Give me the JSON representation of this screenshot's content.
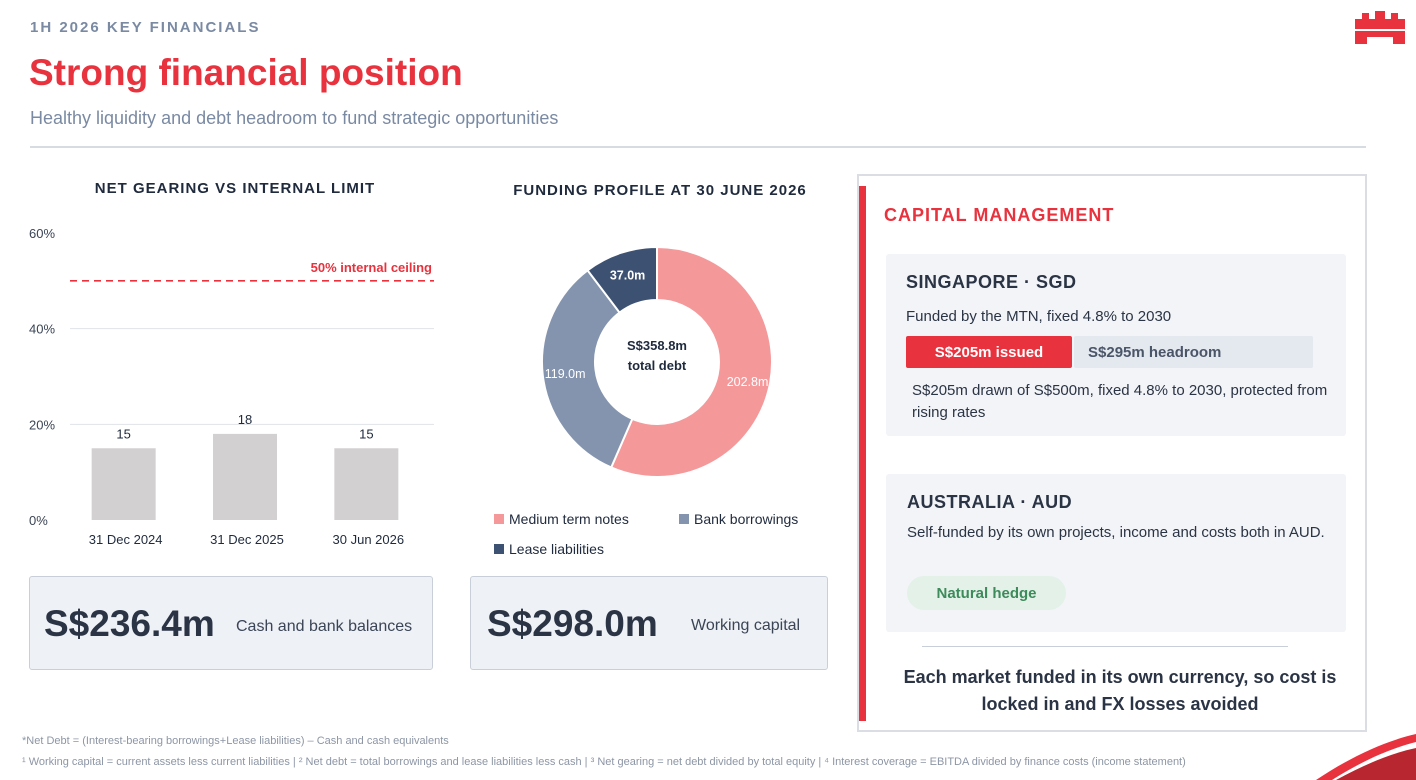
{
  "header": {
    "eyebrow": "1H 2026 KEY FINANCIALS",
    "title": "Strong financial position",
    "subtitle": "Healthy liquidity and debt headroom to fund strategic opportunities"
  },
  "colors": {
    "accent": "#e8323d",
    "navy": "#2b3445",
    "bar": "#d3d0d1",
    "mtn": "#f4989a",
    "bank": "#8494ae",
    "lease": "#3d5273"
  },
  "gearing": {
    "heading": "NET GEARING VS INTERNAL LIMIT",
    "ceiling_label": "50% internal ceiling"
  },
  "chart_data": [
    {
      "type": "bar",
      "title": "NET GEARING VS INTERNAL LIMIT",
      "categories": [
        "31 Dec 2024",
        "31 Dec 2025",
        "30 Jun 2026"
      ],
      "values": [
        15,
        18,
        15
      ],
      "data_labels": [
        "15",
        "18",
        "15"
      ],
      "y_ticks": [
        0,
        20,
        40,
        60
      ],
      "y_tick_labels": [
        "0%",
        "20%",
        "40%",
        "60%"
      ],
      "ylim": [
        0,
        60
      ],
      "reference_line": {
        "value": 50,
        "label": "50% internal ceiling"
      },
      "grid": true
    },
    {
      "type": "pie",
      "title": "FUNDING PROFILE AT 30 JUNE 2026",
      "donut": true,
      "center_label": [
        "S$358.8m",
        "total debt"
      ],
      "slices": [
        {
          "name": "Medium term notes",
          "value": 202.8,
          "label": "202.8m"
        },
        {
          "name": "Bank borrowings",
          "value": 119.0,
          "label": "119.0m"
        },
        {
          "name": "Lease liabilities",
          "value": 37.0,
          "label": "37.0m"
        }
      ],
      "legend": [
        "Medium term notes",
        "Bank borrowings",
        "Lease liabilities"
      ],
      "legend_position": "bottom"
    }
  ],
  "funding": {
    "heading": "FUNDING PROFILE AT 30 JUNE 2026",
    "center_value": "S$358.8m",
    "center_caption": "total debt",
    "legend": [
      "Medium term notes",
      "Bank borrowings",
      "Lease liabilities"
    ]
  },
  "kpis": {
    "cash_value": "S$236.4m",
    "cash_label": "Cash and bank balances",
    "wc_value": "S$298.0m",
    "wc_label": "Working capital"
  },
  "capital": {
    "title": "CAPITAL MANAGEMENT",
    "singapore": {
      "title": "SINGAPORE · SGD",
      "desc": "Funded by the MTN, fixed 4.8% to 2030",
      "issued": "S$205m issued",
      "headroom": "S$295m headroom",
      "issued_fraction": 0.41,
      "note": "S$205m drawn of S$500m, fixed 4.8% to 2030, protected from rising rates"
    },
    "australia": {
      "title": "AUSTRALIA · AUD",
      "desc": "Self-funded by its own projects, income and costs both in AUD.",
      "hedge": "Natural hedge"
    },
    "summary": "Each market funded in its own currency, so cost is locked in and FX losses avoided"
  },
  "footnotes": {
    "line1": "*Net Debt = (Interest-bearing borrowings+Lease liabilities) – Cash and cash equivalents",
    "line2": "¹ Working capital = current assets less current liabilities  |  ² Net debt = total borrowings and lease liabilities less cash  |  ³ Net gearing = net debt divided by total equity  |  ⁴ Interest coverage = EBITDA divided by finance costs (income statement)"
  },
  "icons": {
    "logo": "castle-logo-icon"
  }
}
